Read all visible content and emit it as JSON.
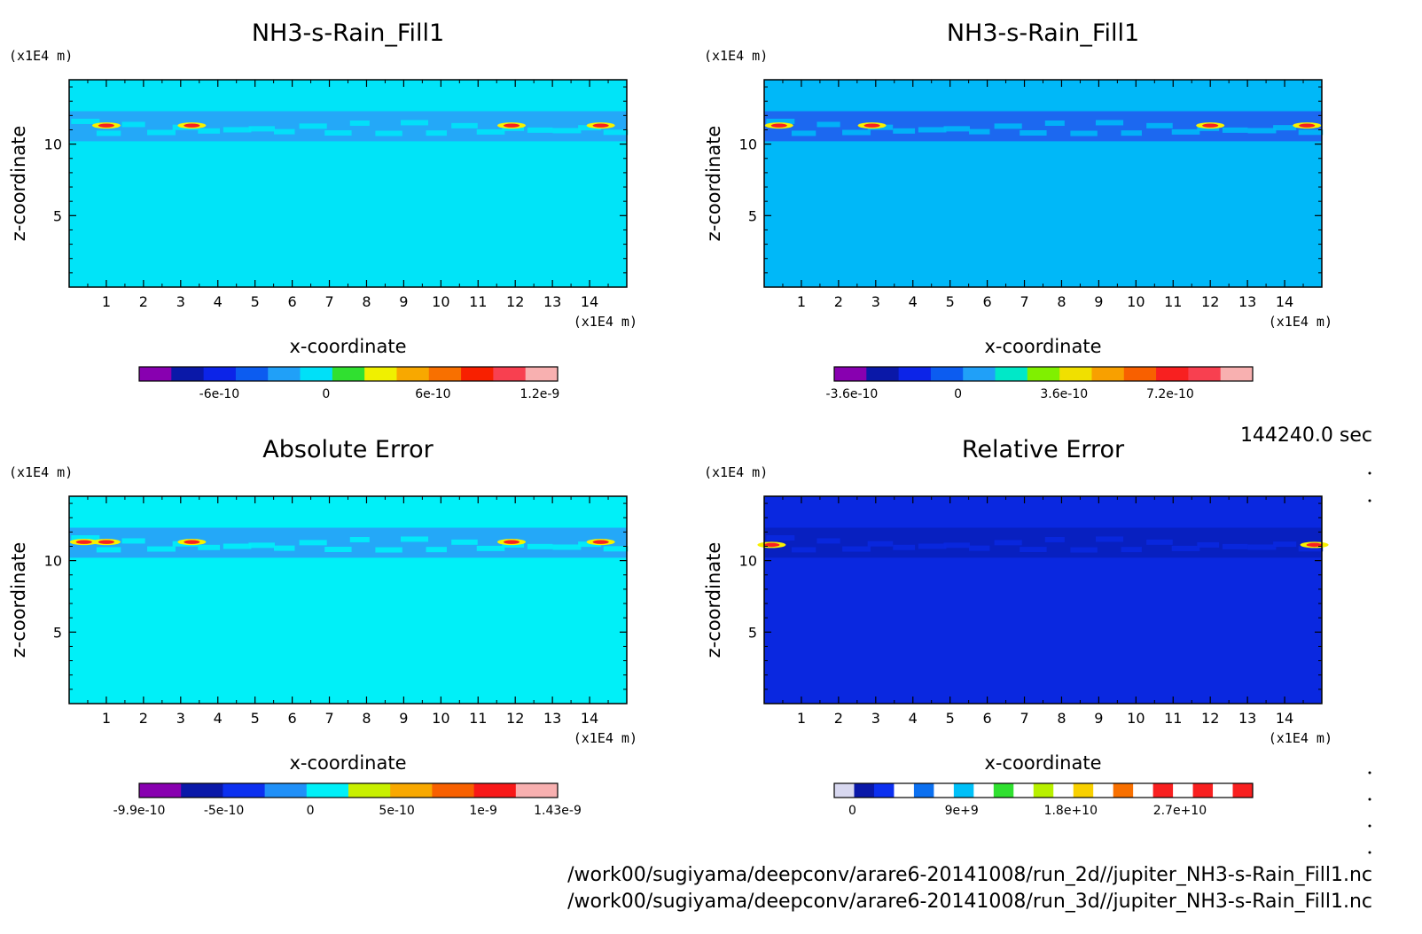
{
  "time_label": "144240.0 sec",
  "files": [
    "/work00/sugiyama/deepconv/arare6-20141008/run_2d//jupiter_NH3-s-Rain_Fill1.nc",
    "/work00/sugiyama/deepconv/arare6-20141008/run_3d//jupiter_NH3-s-Rain_Fill1.nc"
  ],
  "chart_data": [
    {
      "type": "heatmap",
      "title": "NH3-s-Rain_Fill1",
      "xlabel": "x-coordinate",
      "ylabel": "z-coordinate",
      "x_unit": "(x1E4 m)",
      "y_unit": "(x1E4 m)",
      "xlim": [
        0,
        15
      ],
      "ylim": [
        0,
        14.5
      ],
      "x_ticks": [
        1,
        2,
        3,
        4,
        5,
        6,
        7,
        8,
        9,
        10,
        11,
        12,
        13,
        14
      ],
      "y_ticks": [
        5,
        10
      ],
      "background_color": "#00e4f8",
      "band_color": "#24a8f8",
      "band_z_range": [
        10.2,
        12.3
      ],
      "hotspots_x": [
        1.0,
        3.3,
        11.9,
        14.3
      ],
      "hotspot_z": 11.3,
      "colorbar": {
        "colors": [
          "#8800b0",
          "#0a18a8",
          "#0c24e8",
          "#0c5cf0",
          "#20a0f8",
          "#00e0f8",
          "#30e030",
          "#f0f000",
          "#f8a800",
          "#f87000",
          "#f82000",
          "#f84050",
          "#f8b0b0"
        ],
        "tick_labels": [
          "-6e-10",
          "0",
          "6e-10",
          "1.2e-9"
        ],
        "tick_values": [
          -6e-10,
          0,
          6e-10,
          1.2e-09
        ],
        "range": [
          -1.05e-09,
          1.3e-09
        ]
      }
    },
    {
      "type": "heatmap",
      "title": "NH3-s-Rain_Fill1",
      "xlabel": "x-coordinate",
      "ylabel": "z-coordinate",
      "x_unit": "(x1E4 m)",
      "y_unit": "(x1E4 m)",
      "xlim": [
        0,
        15
      ],
      "ylim": [
        0,
        14.5
      ],
      "x_ticks": [
        1,
        2,
        3,
        4,
        5,
        6,
        7,
        8,
        9,
        10,
        11,
        12,
        13,
        14
      ],
      "y_ticks": [
        5,
        10
      ],
      "background_color": "#00b8f8",
      "band_color": "#1c68f0",
      "band_z_range": [
        10.2,
        12.3
      ],
      "hotspots_x": [
        0.4,
        2.9,
        12.0,
        14.6
      ],
      "hotspot_z": 11.3,
      "colorbar": {
        "colors": [
          "#8800b0",
          "#0a18a8",
          "#0c24e8",
          "#0c5cf0",
          "#20a0f8",
          "#00e8c8",
          "#80f000",
          "#f0e000",
          "#f8a000",
          "#f86000",
          "#f82020",
          "#f84050",
          "#f8b0b0"
        ],
        "tick_labels": [
          "-3.6e-10",
          "0",
          "3.6e-10",
          "7.2e-10"
        ],
        "tick_values": [
          -3.6e-10,
          0,
          3.6e-10,
          7.2e-10
        ],
        "range": [
          -4.2e-10,
          1e-09
        ]
      }
    },
    {
      "type": "heatmap",
      "title": "Absolute Error",
      "xlabel": "x-coordinate",
      "ylabel": "z-coordinate",
      "x_unit": "(x1E4 m)",
      "y_unit": "(x1E4 m)",
      "xlim": [
        0,
        15
      ],
      "ylim": [
        0,
        14.5
      ],
      "x_ticks": [
        1,
        2,
        3,
        4,
        5,
        6,
        7,
        8,
        9,
        10,
        11,
        12,
        13,
        14
      ],
      "y_ticks": [
        5,
        10
      ],
      "background_color": "#00f0f8",
      "band_color": "#24a8f8",
      "band_z_range": [
        10.2,
        12.3
      ],
      "hotspots_x": [
        0.4,
        1.0,
        3.3,
        11.9,
        14.3
      ],
      "hotspot_z": 11.3,
      "colorbar": {
        "colors": [
          "#8800b0",
          "#0a18a8",
          "#0c30f0",
          "#2090f8",
          "#00f0f8",
          "#c8f000",
          "#f8a800",
          "#f86000",
          "#f81818",
          "#f8b0b0"
        ],
        "tick_labels": [
          "-9.9e-10",
          "-5e-10",
          "0",
          "5e-10",
          "1e-9",
          "1.43e-9"
        ],
        "tick_values": [
          -9.9e-10,
          -5e-10,
          0,
          5e-10,
          1e-09,
          1.43e-09
        ],
        "range": [
          -9.9e-10,
          1.43e-09
        ]
      }
    },
    {
      "type": "heatmap",
      "title": "Relative Error",
      "xlabel": "x-coordinate",
      "ylabel": "z-coordinate",
      "x_unit": "(x1E4 m)",
      "y_unit": "(x1E4 m)",
      "xlim": [
        0,
        15
      ],
      "ylim": [
        0,
        14.5
      ],
      "x_ticks": [
        1,
        2,
        3,
        4,
        5,
        6,
        7,
        8,
        9,
        10,
        11,
        12,
        13,
        14
      ],
      "y_ticks": [
        5,
        10
      ],
      "background_color": "#0a28e0",
      "band_color": "#0820c0",
      "band_z_range": [
        10.2,
        12.3
      ],
      "hotspots_x": [
        0.2,
        14.8
      ],
      "hotspot_z": 11.1,
      "colorbar": {
        "colors": [
          "#d8d8f0",
          "#0a18a8",
          "#0c30f0",
          "#ffffff",
          "#0c70f0",
          "#ffffff",
          "#00c0f8",
          "#ffffff",
          "#30e030",
          "#ffffff",
          "#b8f000",
          "#ffffff",
          "#f8d000",
          "#ffffff",
          "#f87000",
          "#ffffff",
          "#f82020",
          "#ffffff",
          "#f82020",
          "#ffffff",
          "#f82020"
        ],
        "tick_labels": [
          "0",
          "9e+9",
          "1.8e+10",
          "2.7e+10"
        ],
        "tick_values": [
          0,
          9000000000.0,
          18000000000.0,
          27000000000.0
        ],
        "range": [
          -1500000000.0,
          33000000000.0
        ]
      }
    }
  ]
}
